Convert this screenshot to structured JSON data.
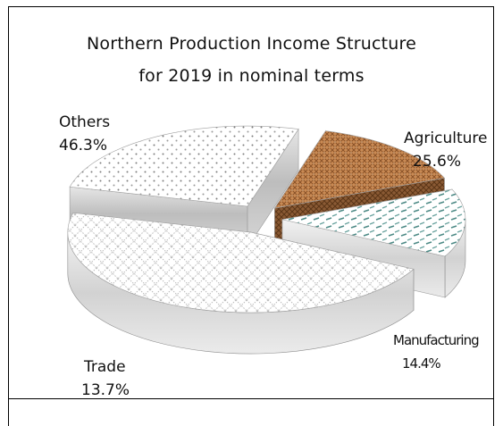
{
  "chart_data": {
    "type": "pie",
    "title": "Northern Production Income Structure",
    "subtitle": "for 2019 in nominal terms",
    "categories": [
      "Agriculture",
      "Manufacturing",
      "Trade",
      "Others"
    ],
    "values": [
      25.6,
      14.4,
      13.7,
      46.3
    ],
    "value_labels": [
      "25.6%",
      "14.4%",
      "13.7%",
      "46.3%"
    ],
    "exploded": true,
    "style": "3d"
  }
}
